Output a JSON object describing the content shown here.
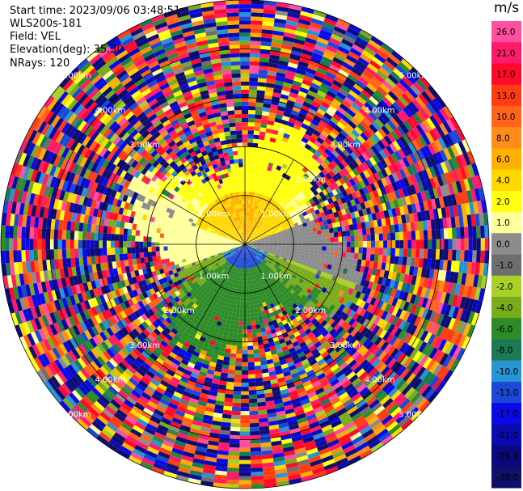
{
  "header": {
    "start_time": "Start time: 2023/09/06 03:48:51",
    "site": "WLS200s-181",
    "field": "Field: VEL",
    "elevation": "Elevation(deg): 35.30",
    "nrays": "NRays: 120"
  },
  "colorbar": {
    "unit": "m/s",
    "ticks": [
      "26.0",
      "21.0",
      "17.0",
      "13.0",
      "10.0",
      "8.0",
      "6.0",
      "4.0",
      "2.0",
      "1.0",
      "0.0",
      "-1.0",
      "-2.0",
      "-4.0",
      "-6.0",
      "-8.0",
      "-10.0",
      "-13.0",
      "-17.0",
      "-21.0",
      "-26.0",
      "-30.0"
    ],
    "colors": [
      "#ff4f9e",
      "#ff1a6a",
      "#ff0a2a",
      "#ff3c14",
      "#ff6418",
      "#ff8c1a",
      "#ffb000",
      "#ffd800",
      "#ffff10",
      "#ffff9c",
      "#8c8c8c",
      "#6e6e6e",
      "#a8d028",
      "#78ac1c",
      "#2e8c28",
      "#1a7a54",
      "#2894d4",
      "#1c48d8",
      "#0a0ae8",
      "#0a0ab0",
      "#0a0a7c",
      "#10106a"
    ]
  },
  "chart_data": {
    "type": "heatmap",
    "projection": "polar-ppi",
    "field": "VEL",
    "elevation_deg": 35.3,
    "nrays": 120,
    "range_ring_labels": [
      "1.00km",
      "2.00km",
      "3.00km",
      "4.00km",
      "5.00km"
    ],
    "range_rings_km": [
      1,
      2,
      3,
      4,
      5
    ],
    "max_range_km": 5.0,
    "value_pattern": [
      {
        "azimuth_deg": 0,
        "range_km": [
          0,
          1
        ],
        "velocity_ms": 6.0
      },
      {
        "azimuth_deg": 0,
        "range_km": [
          1,
          2
        ],
        "velocity_ms": 2.0
      },
      {
        "azimuth_deg": 90,
        "range_km": [
          0,
          2
        ],
        "velocity_ms": 0.0
      },
      {
        "azimuth_deg": 180,
        "range_km": [
          0,
          0.4
        ],
        "velocity_ms": -10.0
      },
      {
        "azimuth_deg": 180,
        "range_km": [
          0.4,
          2
        ],
        "velocity_ms": -4.0
      },
      {
        "azimuth_deg": 270,
        "range_km": [
          0,
          2
        ],
        "velocity_ms": 1.0
      },
      {
        "azimuth_deg": "all",
        "range_km": [
          2.2,
          5
        ],
        "velocity_ms": "noise (-30 to 26)"
      }
    ]
  }
}
